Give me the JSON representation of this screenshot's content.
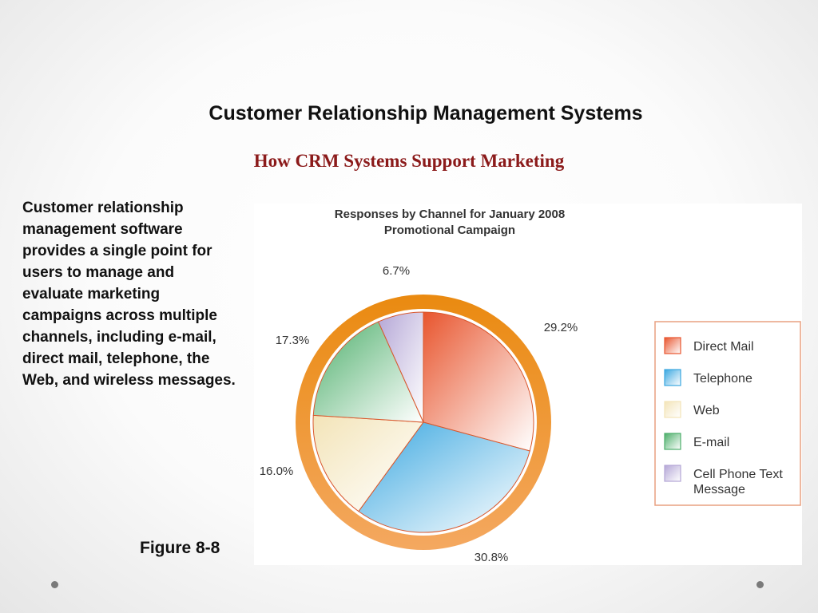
{
  "slide": {
    "title": "Customer Relationship Management Systems",
    "subtitle": "How CRM Systems Support Marketing",
    "body": "Customer relationship management software provides a single point for users to manage and evaluate marketing campaigns across multiple channels, including e-mail, direct mail, telephone, the Web, and wireless messages.",
    "figure_label": "Figure 8-8"
  },
  "chart_data": {
    "type": "pie",
    "title": "Responses by Channel for January 2008 Promotional Campaign",
    "title_lines": [
      "Responses by Channel for January 2008",
      "Promotional Campaign"
    ],
    "slices": [
      {
        "name": "Direct Mail",
        "value": 29.2,
        "label": "29.2%",
        "color": "#e8552e"
      },
      {
        "name": "Telephone",
        "value": 30.8,
        "label": "30.8%",
        "color": "#3aa7e0"
      },
      {
        "name": "Web",
        "value": 16.0,
        "label": "16.0%",
        "color": "#f3e4b8"
      },
      {
        "name": "E-mail",
        "value": 17.3,
        "label": "17.3%",
        "color": "#4cae6a"
      },
      {
        "name": "Cell Phone Text Message",
        "value": 6.7,
        "label": "6.7%",
        "color": "#b4a6d6"
      }
    ],
    "legend": {
      "placement": "right",
      "entries": [
        [
          "Direct Mail"
        ],
        [
          "Telephone"
        ],
        [
          "Web"
        ],
        [
          "E-mail"
        ],
        [
          "Cell Phone Text",
          "Message"
        ]
      ]
    },
    "ring_color": "#f0901e"
  }
}
